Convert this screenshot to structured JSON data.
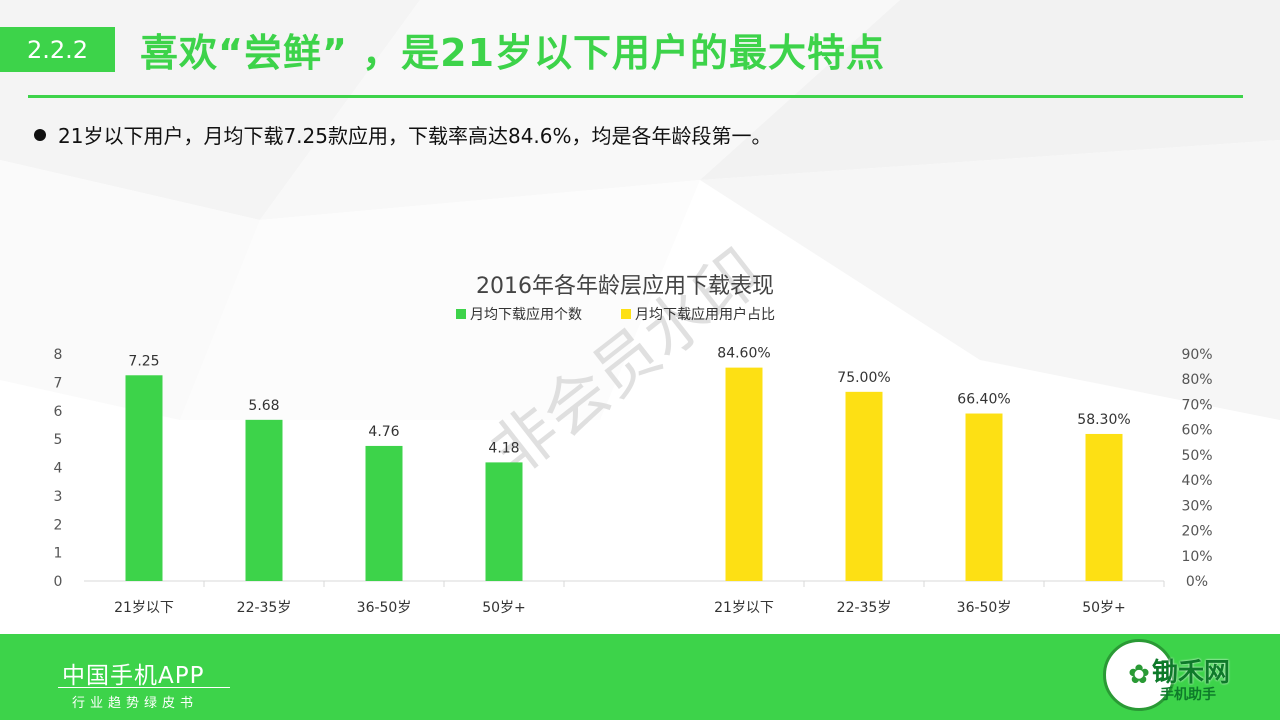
{
  "header": {
    "section_number": "2.2.2",
    "title": "喜欢“尝鲜” ，是21岁以下用户的最大特点"
  },
  "bullet": {
    "text": "21岁以下用户，月均下载7.25款应用，下载率高达84.6%，均是各年龄段第一。"
  },
  "watermark": "非会员水印",
  "chart_data": {
    "type": "bar",
    "title": "2016年各年龄层应用下载表现",
    "legend": [
      {
        "name": "月均下载应用个数",
        "color": "#3dd34a"
      },
      {
        "name": "月均下载应用用户占比",
        "color": "#fde014"
      }
    ],
    "legend_position": "top",
    "grid": false,
    "series": [
      {
        "name": "月均下载应用个数",
        "color": "#3dd34a",
        "axis": "left",
        "categories": [
          "21岁以下",
          "22-35岁",
          "36-50岁",
          "50岁+"
        ],
        "values": [
          7.25,
          5.68,
          4.76,
          4.18
        ],
        "value_labels": [
          "7.25",
          "5.68",
          "4.76",
          "4.18"
        ]
      },
      {
        "name": "月均下载应用用户占比",
        "color": "#fde014",
        "axis": "right",
        "categories": [
          "21岁以下",
          "22-35岁",
          "36-50岁",
          "50岁+"
        ],
        "values": [
          84.6,
          75.0,
          66.4,
          58.3
        ],
        "value_labels": [
          "84.60%",
          "75.00%",
          "66.40%",
          "58.30%"
        ]
      }
    ],
    "y_left": {
      "min": 0,
      "max": 8,
      "ticks": [
        "0",
        "1",
        "2",
        "3",
        "4",
        "5",
        "6",
        "7",
        "8"
      ]
    },
    "y_right": {
      "min": 0,
      "max": 90,
      "ticks": [
        "0%",
        "10%",
        "20%",
        "30%",
        "40%",
        "50%",
        "60%",
        "70%",
        "80%",
        "90%"
      ]
    }
  },
  "footer": {
    "brand": "中国手机APP",
    "subtitle": "行业趋势绿皮书",
    "logo_text": "锄禾网",
    "logo_sub": "手机助手"
  }
}
